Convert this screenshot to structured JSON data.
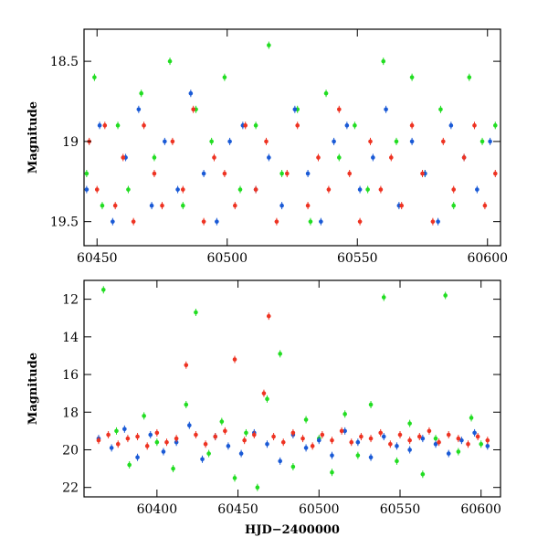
{
  "chart_data": [
    {
      "type": "scatter",
      "panel": "top",
      "title": "",
      "xlabel": "",
      "ylabel": "Magnitude",
      "xlim": [
        60445,
        60605
      ],
      "ylim": [
        19.65,
        18.3
      ],
      "y_inverted": true,
      "x_ticks": [
        60450,
        60500,
        60550,
        60600
      ],
      "x_tick_labels": [
        "60450",
        "60500",
        "60550",
        "60600"
      ],
      "y_ticks": [
        18.5,
        19,
        19.5
      ],
      "y_tick_labels": [
        "18.5",
        "19",
        "19.5"
      ],
      "grid": false,
      "legend": "none",
      "series": [
        {
          "color": "#22dd22",
          "x": [
            60446,
            60449,
            60452,
            60458,
            60462,
            60467,
            60472,
            60478,
            60483,
            60488,
            60494,
            60499,
            60505,
            60511,
            60516,
            60521,
            60527,
            60532,
            60538,
            60543,
            60549,
            60554,
            60560,
            60565,
            60571,
            60576,
            60582,
            60587,
            60593,
            60598,
            60603
          ],
          "y": [
            19.2,
            18.6,
            19.4,
            18.9,
            19.3,
            18.7,
            19.1,
            18.5,
            19.4,
            18.8,
            19.0,
            18.6,
            19.3,
            18.9,
            18.4,
            19.2,
            18.8,
            19.5,
            18.7,
            19.1,
            18.9,
            19.3,
            18.5,
            19.0,
            18.6,
            19.2,
            18.8,
            19.4,
            18.6,
            19.0,
            18.9
          ]
        },
        {
          "color": "#1a5ad6",
          "x": [
            60446,
            60451,
            60456,
            60461,
            60466,
            60471,
            60476,
            60481,
            60486,
            60491,
            60496,
            60501,
            60506,
            60511,
            60516,
            60521,
            60526,
            60531,
            60536,
            60541,
            60546,
            60551,
            60556,
            60561,
            60566,
            60571,
            60576,
            60581,
            60586,
            60591,
            60596,
            60601
          ],
          "y": [
            19.3,
            18.9,
            19.5,
            19.1,
            18.8,
            19.4,
            19.0,
            19.3,
            18.7,
            19.2,
            19.5,
            19.0,
            18.9,
            19.3,
            19.1,
            19.4,
            18.8,
            19.2,
            19.5,
            19.0,
            18.9,
            19.3,
            19.1,
            18.8,
            19.4,
            19.0,
            19.2,
            19.5,
            18.9,
            19.1,
            19.3,
            19.0
          ]
        },
        {
          "color": "#ee3322",
          "x": [
            60447,
            60450,
            60453,
            60457,
            60460,
            60464,
            60468,
            60472,
            60475,
            60479,
            60483,
            60487,
            60491,
            60495,
            60499,
            60503,
            60507,
            60511,
            60515,
            60519,
            60523,
            60527,
            60531,
            60535,
            60539,
            60543,
            60547,
            60551,
            60555,
            60559,
            60563,
            60567,
            60571,
            60575,
            60579,
            60583,
            60587,
            60591,
            60595,
            60599,
            60603
          ],
          "y": [
            19.0,
            19.3,
            18.9,
            19.4,
            19.1,
            19.5,
            18.9,
            19.2,
            19.4,
            19.0,
            19.3,
            18.8,
            19.5,
            19.1,
            19.2,
            19.4,
            18.9,
            19.3,
            19.0,
            19.5,
            19.2,
            18.9,
            19.4,
            19.1,
            19.3,
            18.8,
            19.2,
            19.5,
            19.0,
            19.3,
            19.1,
            19.4,
            18.9,
            19.2,
            19.5,
            19.0,
            19.3,
            19.1,
            18.9,
            19.4,
            19.2
          ]
        }
      ]
    },
    {
      "type": "scatter",
      "panel": "bottom",
      "title": "",
      "xlabel": "HJD−2400000",
      "ylabel": "Magnitude",
      "xlim": [
        60355,
        60612
      ],
      "ylim": [
        22.5,
        11
      ],
      "y_inverted": true,
      "x_ticks": [
        60400,
        60450,
        60500,
        60550,
        60600
      ],
      "x_tick_labels": [
        "60400",
        "60450",
        "60500",
        "60550",
        "60600"
      ],
      "y_ticks": [
        12,
        14,
        16,
        18,
        20,
        22
      ],
      "y_tick_labels": [
        "12",
        "14",
        "16",
        "18",
        "20",
        "22"
      ],
      "grid": false,
      "legend": "none",
      "series": [
        {
          "color": "#22dd22",
          "x": [
            60367,
            60375,
            60383,
            60392,
            60400,
            60410,
            60418,
            60424,
            60432,
            60440,
            60448,
            60455,
            60462,
            60468,
            60476,
            60484,
            60492,
            60500,
            60508,
            60516,
            60524,
            60532,
            60540,
            60548,
            60556,
            60564,
            60572,
            60578,
            60586,
            60594,
            60600
          ],
          "y": [
            11.5,
            19.0,
            20.8,
            18.2,
            19.6,
            21.0,
            17.6,
            12.7,
            20.2,
            18.5,
            21.5,
            19.1,
            22.0,
            17.3,
            14.9,
            20.9,
            18.4,
            19.4,
            21.2,
            18.1,
            20.3,
            17.6,
            11.9,
            20.6,
            18.6,
            21.3,
            19.4,
            11.8,
            20.1,
            18.3,
            19.7
          ]
        },
        {
          "color": "#1a5ad6",
          "x": [
            60364,
            60372,
            60380,
            60388,
            60396,
            60404,
            60412,
            60420,
            60428,
            60436,
            60444,
            60452,
            60460,
            60468,
            60476,
            60484,
            60492,
            60500,
            60508,
            60516,
            60524,
            60532,
            60540,
            60548,
            60556,
            60564,
            60572,
            60580,
            60588,
            60596,
            60604
          ],
          "y": [
            19.4,
            19.9,
            18.9,
            20.4,
            19.2,
            20.1,
            19.6,
            18.7,
            20.5,
            19.3,
            19.8,
            20.2,
            19.1,
            19.7,
            20.6,
            19.2,
            19.9,
            19.5,
            20.3,
            19.0,
            19.6,
            20.4,
            19.3,
            19.8,
            20.0,
            19.4,
            19.7,
            20.2,
            19.5,
            19.1,
            19.8
          ]
        },
        {
          "color": "#ee3322",
          "x": [
            60364,
            60370,
            60376,
            60382,
            60388,
            60394,
            60400,
            60406,
            60412,
            60418,
            60424,
            60430,
            60436,
            60442,
            60448,
            60454,
            60460,
            60466,
            60469,
            60472,
            60478,
            60484,
            60490,
            60496,
            60502,
            60508,
            60514,
            60520,
            60526,
            60532,
            60538,
            60544,
            60550,
            60556,
            60562,
            60568,
            60574,
            60580,
            60586,
            60592,
            60598,
            60604
          ],
          "y": [
            19.5,
            19.2,
            19.7,
            19.4,
            19.3,
            19.8,
            19.1,
            19.6,
            19.4,
            15.5,
            19.2,
            19.7,
            19.3,
            19.0,
            15.2,
            19.5,
            19.2,
            17.0,
            12.9,
            19.3,
            19.6,
            19.1,
            19.4,
            19.8,
            19.2,
            19.5,
            19.0,
            19.6,
            19.3,
            19.4,
            19.1,
            19.7,
            19.2,
            19.5,
            19.3,
            19.0,
            19.6,
            19.2,
            19.4,
            19.7,
            19.3,
            19.5
          ]
        }
      ]
    }
  ]
}
